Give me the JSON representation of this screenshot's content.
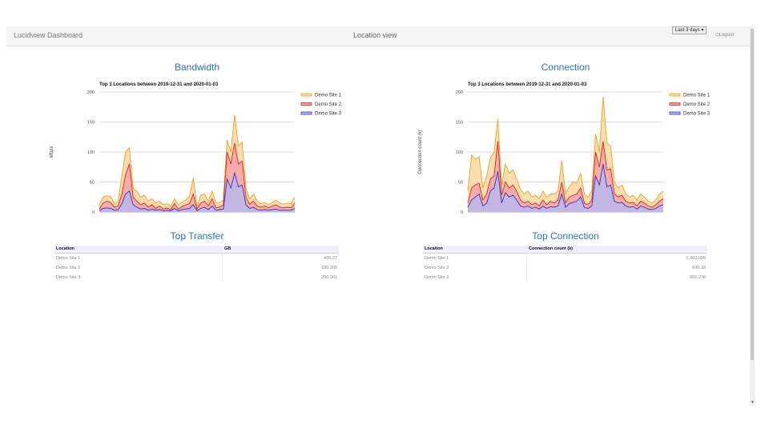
{
  "header": {
    "brand": "Lucidview Dashboard",
    "view_title": "Location view",
    "range_label": "Last 3 days ▾",
    "logout_label": "Logout"
  },
  "colors": {
    "site1": "#f0a020",
    "site2": "#e02020",
    "site3": "#3030d0",
    "accent": "#2a73b8"
  },
  "bandwidth": {
    "section_title": "Bandwidth",
    "chart_data": {
      "type": "area",
      "title": "Top 3 Locations between 2019-12-31 and 2020-01-03",
      "ylabel": "Mbps",
      "xlabel": "",
      "ylim": [
        0,
        200
      ],
      "yticks": [
        0,
        50,
        100,
        150,
        200
      ],
      "grid": true,
      "legend": "right",
      "series": [
        {
          "name": "Demo Site 1",
          "values": [
            12,
            25,
            27,
            26,
            14,
            18,
            60,
            100,
            107,
            40,
            35,
            25,
            28,
            18,
            22,
            15,
            18,
            12,
            14,
            10,
            22,
            12,
            16,
            20,
            26,
            57,
            10,
            28,
            30,
            18,
            35,
            15,
            16,
            20,
            120,
            100,
            162,
            110,
            117,
            40,
            22,
            30,
            18,
            14,
            16,
            12,
            16,
            20,
            15,
            13,
            15,
            14,
            25
          ]
        },
        {
          "name": "Demo Site 2",
          "values": [
            5,
            15,
            18,
            16,
            8,
            10,
            30,
            62,
            80,
            25,
            18,
            12,
            15,
            8,
            12,
            6,
            10,
            5,
            7,
            4,
            14,
            5,
            9,
            12,
            14,
            30,
            5,
            15,
            18,
            10,
            22,
            7,
            8,
            12,
            100,
            80,
            115,
            80,
            85,
            25,
            13,
            18,
            10,
            8,
            10,
            7,
            10,
            12,
            8,
            7,
            8,
            7,
            15
          ]
        },
        {
          "name": "Demo Site 3",
          "values": [
            2,
            6,
            7,
            6,
            3,
            4,
            14,
            30,
            35,
            12,
            8,
            5,
            6,
            3,
            5,
            3,
            4,
            2,
            3,
            2,
            6,
            2,
            4,
            5,
            6,
            12,
            2,
            6,
            8,
            4,
            10,
            3,
            4,
            5,
            55,
            40,
            65,
            42,
            45,
            12,
            6,
            8,
            4,
            3,
            4,
            3,
            4,
            5,
            3,
            3,
            3,
            3,
            6
          ]
        }
      ]
    }
  },
  "connection": {
    "section_title": "Connection",
    "chart_data": {
      "type": "area",
      "title": "Top 3 Locations between 2019-12-31 and 2020-01-03",
      "ylabel": "Connection count (k)",
      "xlabel": "",
      "ylim": [
        0,
        200
      ],
      "yticks": [
        0,
        50,
        100,
        150,
        200
      ],
      "grid": true,
      "legend": "right",
      "series": [
        {
          "name": "Demo Site 1",
          "values": [
            35,
            95,
            88,
            92,
            40,
            60,
            90,
            100,
            155,
            45,
            80,
            65,
            70,
            55,
            38,
            30,
            35,
            25,
            28,
            22,
            35,
            25,
            30,
            30,
            35,
            86,
            30,
            42,
            50,
            48,
            65,
            30,
            25,
            35,
            130,
            100,
            192,
            115,
            110,
            50,
            40,
            45,
            30,
            25,
            28,
            20,
            30,
            25,
            18,
            15,
            20,
            30,
            35
          ]
        },
        {
          "name": "Demo Site 2",
          "values": [
            15,
            40,
            45,
            48,
            20,
            30,
            55,
            60,
            118,
            28,
            50,
            40,
            45,
            35,
            20,
            15,
            18,
            12,
            15,
            10,
            20,
            12,
            18,
            15,
            20,
            50,
            15,
            25,
            28,
            30,
            40,
            15,
            12,
            20,
            100,
            75,
            118,
            70,
            72,
            30,
            25,
            28,
            18,
            15,
            16,
            10,
            18,
            15,
            10,
            8,
            12,
            18,
            22
          ]
        },
        {
          "name": "Demo Site 3",
          "values": [
            8,
            20,
            25,
            30,
            10,
            15,
            35,
            40,
            68,
            15,
            32,
            25,
            28,
            20,
            10,
            8,
            10,
            6,
            8,
            5,
            10,
            6,
            9,
            8,
            10,
            30,
            8,
            14,
            16,
            18,
            25,
            8,
            6,
            10,
            60,
            45,
            80,
            42,
            45,
            18,
            15,
            16,
            10,
            8,
            9,
            5,
            10,
            8,
            5,
            4,
            6,
            10,
            12
          ]
        }
      ]
    }
  },
  "top_transfer": {
    "section_title": "Top Transfer",
    "columns": [
      "Location",
      "GB"
    ],
    "rows": [
      [
        "Demo Site 1",
        "405.27"
      ],
      [
        "Demo Site 2",
        "330.308"
      ],
      [
        "Demo Site 3",
        "200.901"
      ]
    ]
  },
  "top_connection": {
    "section_title": "Top Connection",
    "columns": [
      "Location",
      "Connection count (k)"
    ],
    "rows": [
      [
        "Demo Site 1",
        "1,360.020"
      ],
      [
        "Demo Site 3",
        "839.18"
      ],
      [
        "Demo Site 2",
        "801.278"
      ]
    ]
  }
}
